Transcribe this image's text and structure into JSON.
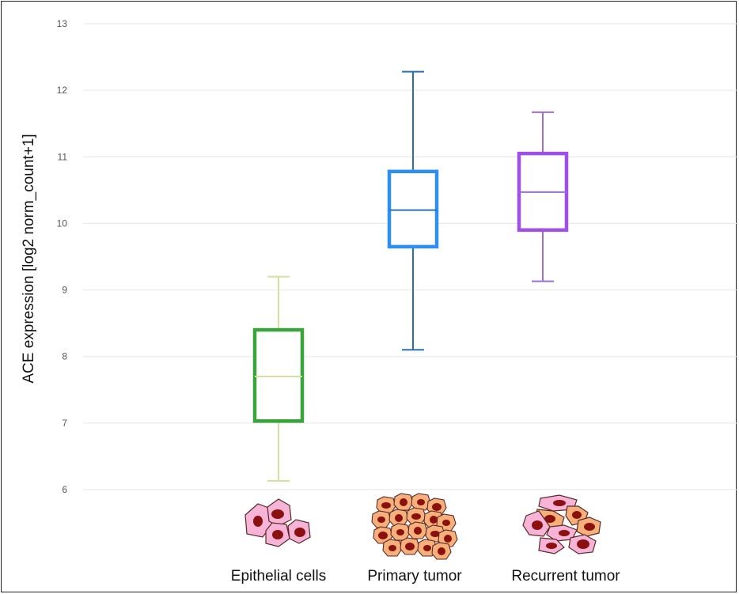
{
  "chart_data": {
    "type": "box",
    "ylabel": "ACE expression [log2 norm_count+1]",
    "ylim": [
      6,
      13
    ],
    "yticks": [
      6,
      7,
      8,
      9,
      10,
      11,
      12,
      13
    ],
    "grid": true,
    "categories": [
      "Epithelial cells",
      "Primary tumor",
      "Recurrent tumor"
    ],
    "series": [
      {
        "category": "Epithelial cells",
        "min": 6.13,
        "q1": 7.03,
        "median": 7.7,
        "q3": 8.4,
        "max": 9.2,
        "box_color": "#3aa33a",
        "whisker_color": "#d4e09b"
      },
      {
        "category": "Primary tumor",
        "min": 8.1,
        "q1": 9.65,
        "median": 10.2,
        "q3": 10.78,
        "max": 12.28,
        "box_color": "#2f8ff0",
        "whisker_color": "#2a70b8"
      },
      {
        "category": "Recurrent tumor",
        "min": 9.13,
        "q1": 9.9,
        "median": 10.47,
        "q3": 11.05,
        "max": 11.67,
        "box_color": "#a04ee8",
        "whisker_color": "#9a6fd0"
      }
    ],
    "illustrations": [
      "epithelial-cells-icon",
      "primary-tumor-cells-icon",
      "recurrent-tumor-cells-icon"
    ]
  },
  "colors": {
    "grid": "#e6e6e6",
    "cell_pink": "#f7b4d6",
    "cell_orange": "#f7b07a",
    "nucleus": "#8b1010",
    "cell_outline": "#5a2a2a"
  }
}
